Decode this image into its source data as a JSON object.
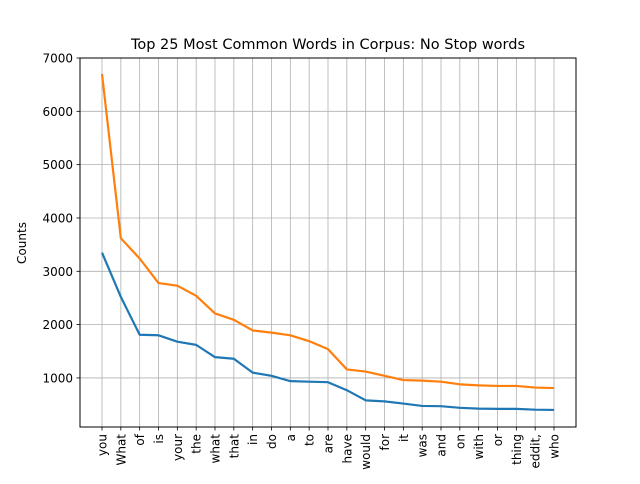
{
  "chart_data": {
    "type": "line",
    "title": "Top 25 Most Common Words in Corpus: No Stop words",
    "xlabel": "",
    "ylabel": "Counts",
    "ylim": [
      0,
      7000
    ],
    "y_range_visible": [
      80,
      7000
    ],
    "yticks": [
      "1000",
      "2000",
      "3000",
      "4000",
      "5000",
      "6000",
      "7000"
    ],
    "grid": true,
    "categories": [
      "you",
      "What",
      "of",
      "is",
      "your",
      "the",
      "what",
      "that",
      "in",
      "do",
      "a",
      "to",
      "are",
      "have",
      "would",
      "for",
      "it",
      "was",
      "and",
      "on",
      "with",
      "or",
      "thing",
      "eddit,",
      "who"
    ],
    "series": [
      {
        "color": "#1f77b4",
        "values": [
          3350,
          2520,
          1810,
          1800,
          1680,
          1620,
          1390,
          1360,
          1100,
          1040,
          940,
          930,
          920,
          770,
          580,
          560,
          520,
          475,
          470,
          440,
          425,
          420,
          420,
          405,
          400
        ]
      },
      {
        "color": "#ff7f0e",
        "values": [
          6700,
          3620,
          3240,
          2780,
          2730,
          2540,
          2210,
          2090,
          1890,
          1850,
          1800,
          1690,
          1540,
          1160,
          1120,
          1040,
          960,
          950,
          930,
          880,
          860,
          850,
          850,
          820,
          810
        ]
      }
    ]
  }
}
